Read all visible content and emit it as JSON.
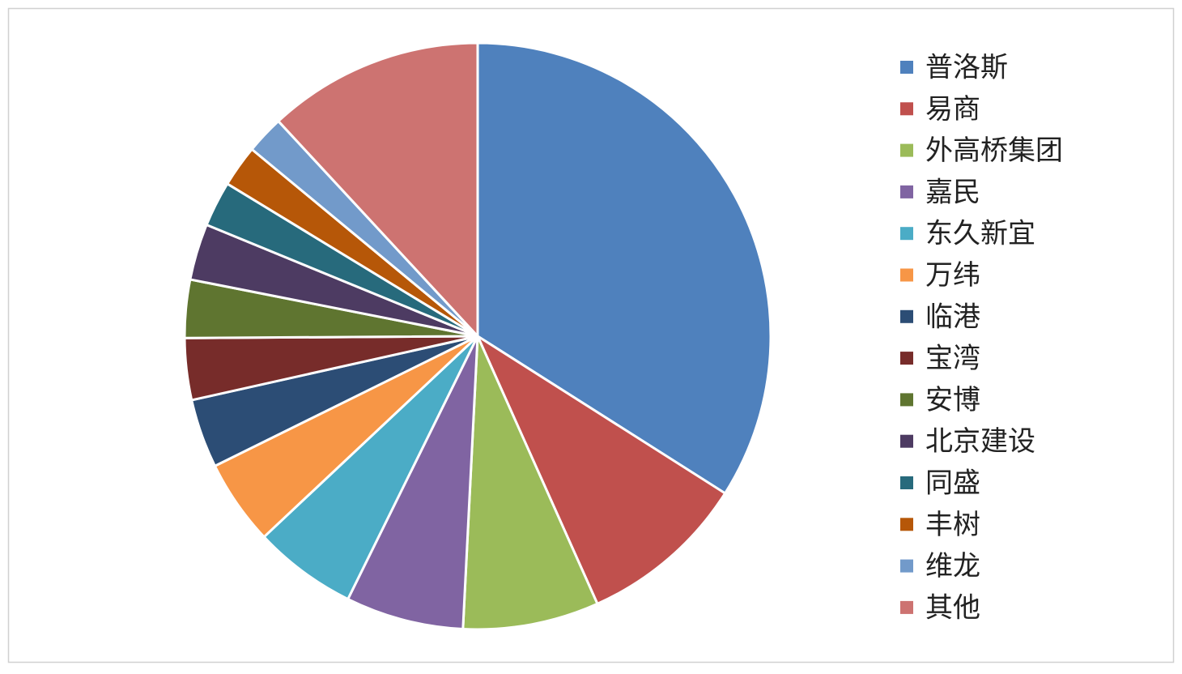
{
  "chart_data": {
    "type": "pie",
    "categories": [
      "普洛斯",
      "易商",
      "外高桥集团",
      "嘉民",
      "东久新宜",
      "万纬",
      "临港",
      "宝湾",
      "安博",
      "北京建设",
      "同盛",
      "丰树",
      "维龙",
      "其他"
    ],
    "values": [
      34.0,
      9.3,
      7.5,
      6.5,
      5.7,
      4.7,
      3.8,
      3.4,
      3.2,
      3.1,
      2.5,
      2.3,
      2.1,
      11.9
    ],
    "colors": [
      "#4f81bd",
      "#c0504d",
      "#9bbb59",
      "#8064a2",
      "#4bacc6",
      "#f79646",
      "#2c4d75",
      "#772c2a",
      "#5f7530",
      "#4d3b62",
      "#276a7c",
      "#b65708",
      "#729aca",
      "#cd7371"
    ],
    "legend": "right"
  }
}
